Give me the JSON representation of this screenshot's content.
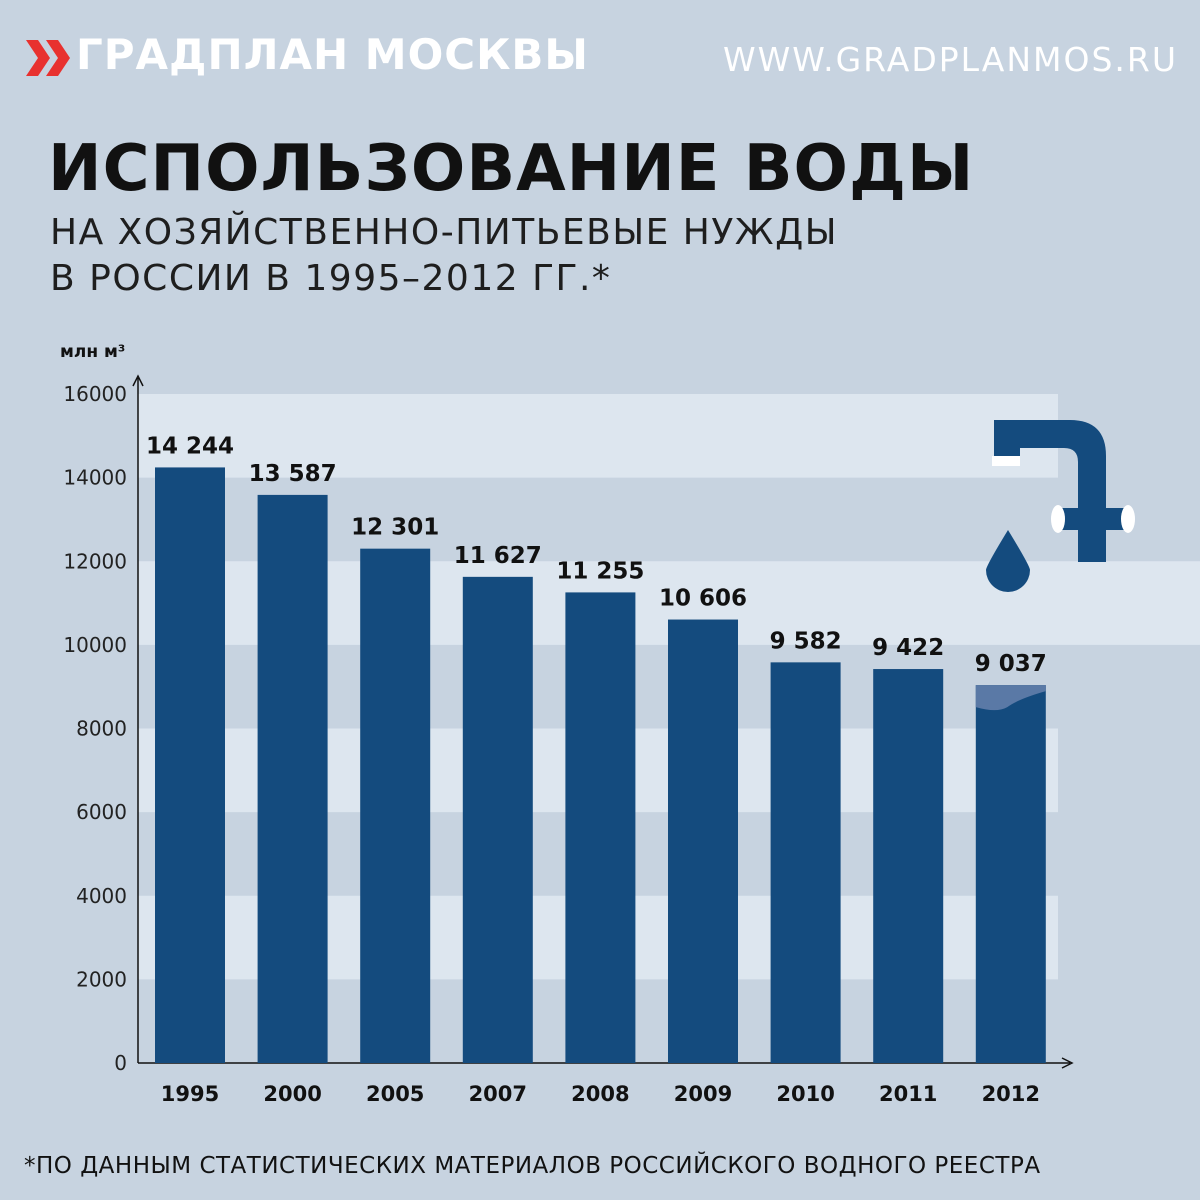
{
  "header": {
    "brand": "ГРАДПЛАН МОСКВЫ",
    "site": "WWW.GRADPLANMOS.RU"
  },
  "title": "ИСПОЛЬЗОВАНИЕ ВОДЫ",
  "subtitle_line1": "НА ХОЗЯЙСТВЕННО-ПИТЬЕВЫЕ НУЖДЫ",
  "subtitle_line2": "В РОССИИ В 1995–2012 ГГ.*",
  "footnote": "*ПО ДАННЫМ СТАТИСТИЧЕСКИХ МАТЕРИАЛОВ РОССИЙСКОГО ВОДНОГО РЕЕСТРА",
  "colors": {
    "background": "#c7d3e0",
    "band": "#dde6ef",
    "bar": "#144b7e",
    "accent": "#e8312f",
    "water": "#5a79a6"
  },
  "icons": [
    "double-chevron-icon",
    "water-tap-icon",
    "water-drop-icon"
  ],
  "chart_data": {
    "type": "bar",
    "ylabel": "млн м³",
    "ylim": [
      0,
      16000
    ],
    "yticks": [
      "0",
      "2000",
      "4000",
      "6000",
      "8000",
      "10000",
      "12000",
      "14000",
      "16000"
    ],
    "categories": [
      "1995",
      "2000",
      "2005",
      "2007",
      "2008",
      "2009",
      "2010",
      "2011",
      "2012"
    ],
    "values": [
      14244,
      13587,
      12301,
      11627,
      11255,
      10606,
      9582,
      9422,
      9037
    ],
    "value_labels": [
      "14 244",
      "13 587",
      "12 301",
      "11 627",
      "11 255",
      "10 606",
      "9 582",
      "9 422",
      "9 037"
    ],
    "grid": "alternating horizontal bands",
    "legend": "none"
  }
}
